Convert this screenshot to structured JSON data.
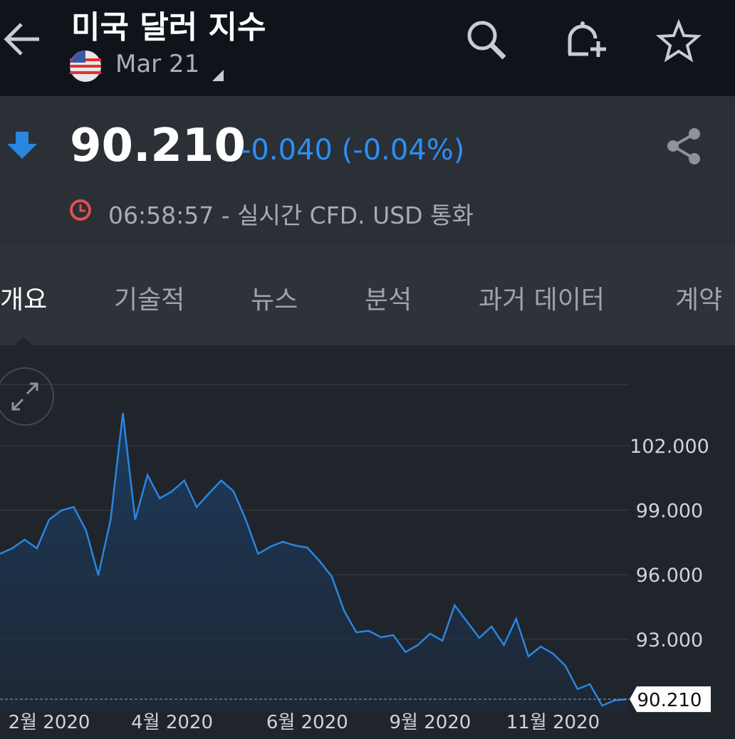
{
  "header": {
    "title": "미국 달러 지수",
    "date": "Mar 21"
  },
  "quote": {
    "price": "90.210",
    "change": "-0.040 (-0.04%)",
    "time": "06:58:57 - 실시간 CFD. USD 통화"
  },
  "tabs": [
    "개요",
    "기술적",
    "뉴스",
    "분석",
    "과거 데이터",
    "계약"
  ],
  "chart_data": {
    "type": "line",
    "categories": [
      null,
      null,
      null,
      null,
      "2월 2020",
      null,
      null,
      null,
      null,
      null,
      null,
      null,
      null,
      null,
      "4월 2020",
      null,
      null,
      null,
      null,
      null,
      null,
      null,
      null,
      null,
      null,
      "6월 2020",
      null,
      null,
      null,
      null,
      null,
      null,
      null,
      null,
      null,
      "9월 2020",
      null,
      null,
      null,
      null,
      null,
      null,
      null,
      null,
      null,
      "11월 2020",
      null,
      null,
      null,
      null,
      null,
      null
    ],
    "values": [
      96.97,
      97.23,
      97.63,
      97.23,
      98.56,
      98.99,
      99.15,
      98.06,
      95.97,
      98.56,
      103.52,
      98.56,
      100.64,
      99.55,
      99.88,
      100.38,
      99.15,
      99.78,
      100.38,
      99.88,
      98.56,
      96.97,
      97.3,
      97.53,
      97.36,
      97.26,
      96.64,
      95.91,
      94.32,
      93.32,
      93.39,
      93.09,
      93.19,
      92.4,
      92.73,
      93.26,
      92.93,
      94.58,
      93.82,
      93.06,
      93.59,
      92.73,
      93.95,
      92.2,
      92.66,
      92.33,
      91.77,
      90.68,
      90.91,
      89.91,
      90.15,
      90.21
    ],
    "color": "#2a86df",
    "ylim": [
      89.6,
      105
    ],
    "yticks": [
      {
        "value": 93,
        "label": "93.000"
      },
      {
        "value": 96,
        "label": "96.000"
      },
      {
        "value": 99,
        "label": "99.000"
      },
      {
        "value": 102,
        "label": "102.000"
      }
    ],
    "grid": true
  }
}
